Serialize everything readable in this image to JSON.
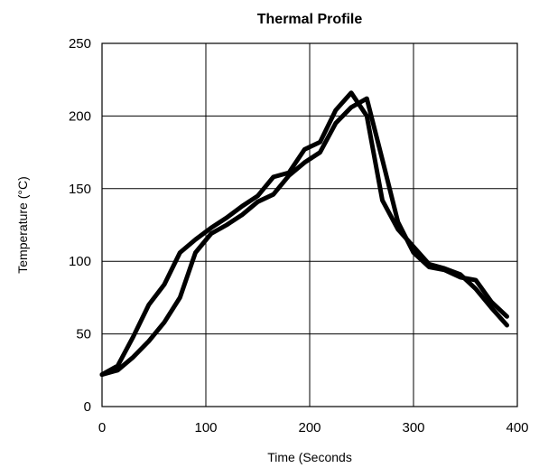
{
  "chart_data": {
    "type": "line",
    "title": "Thermal Profile",
    "xlabel": "Time (Seconds",
    "ylabel": "Temperature (°C)",
    "xlim": [
      0,
      400
    ],
    "ylim": [
      0,
      250
    ],
    "xticks": [
      "0",
      "100",
      "200",
      "300",
      "400"
    ],
    "yticks": [
      "0",
      "50",
      "100",
      "150",
      "200",
      "250"
    ],
    "grid": true,
    "series": [
      {
        "x": [
          0,
          15,
          30,
          45,
          60,
          75,
          90,
          105,
          120,
          135,
          150,
          165,
          180,
          195,
          210,
          225,
          240,
          255,
          270,
          285,
          300,
          315,
          330,
          345,
          360,
          375,
          390
        ],
        "values": [
          22,
          28,
          48,
          70,
          84,
          106,
          115,
          123,
          130,
          138,
          145,
          158,
          161,
          177,
          182,
          204,
          216,
          200,
          142,
          122,
          110,
          98,
          95,
          91,
          81,
          68,
          56
        ]
      },
      {
        "x": [
          0,
          15,
          30,
          45,
          60,
          75,
          90,
          105,
          120,
          135,
          150,
          165,
          180,
          195,
          210,
          225,
          240,
          255,
          270,
          285,
          300,
          315,
          330,
          345,
          360,
          375,
          390
        ],
        "values": [
          22,
          25,
          34,
          45,
          58,
          75,
          106,
          119,
          125,
          132,
          141,
          146,
          159,
          168,
          175,
          195,
          206,
          212,
          170,
          127,
          106,
          96,
          94,
          89,
          87,
          72,
          62
        ]
      }
    ],
    "line_color": "#000000"
  }
}
